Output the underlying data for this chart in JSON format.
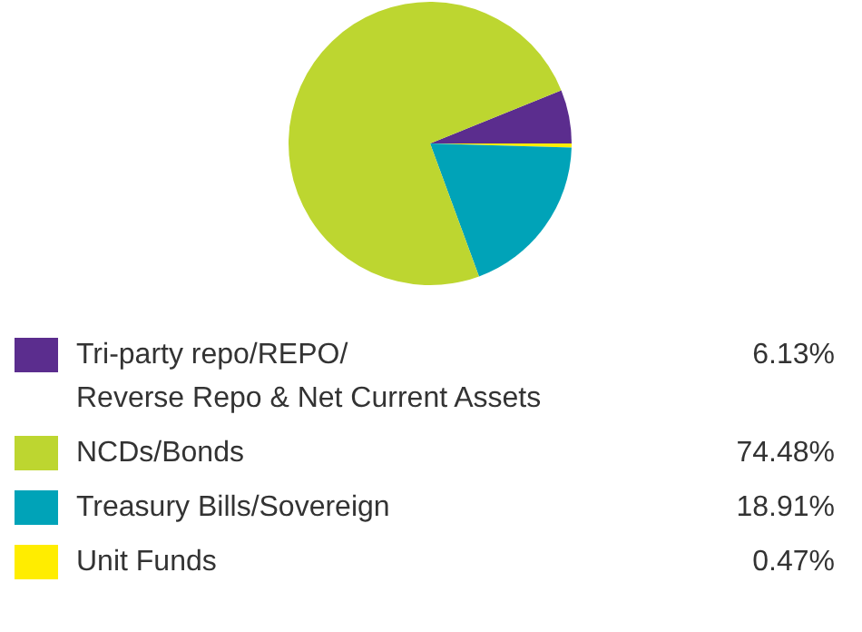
{
  "chart_data": {
    "type": "pie",
    "categories": [
      "Tri-party repo/REPO/\nReverse Repo & Net Current Assets",
      "NCDs/Bonds",
      "Treasury Bills/Sovereign",
      "Unit Funds"
    ],
    "values": [
      6.13,
      74.48,
      18.91,
      0.47
    ],
    "value_labels": [
      "6.13%",
      "74.48%",
      "18.91%",
      "0.47%"
    ],
    "colors": [
      "#5b2d8e",
      "#bdd630",
      "#00a3b8",
      "#ffed00"
    ],
    "legend": "bottom"
  }
}
